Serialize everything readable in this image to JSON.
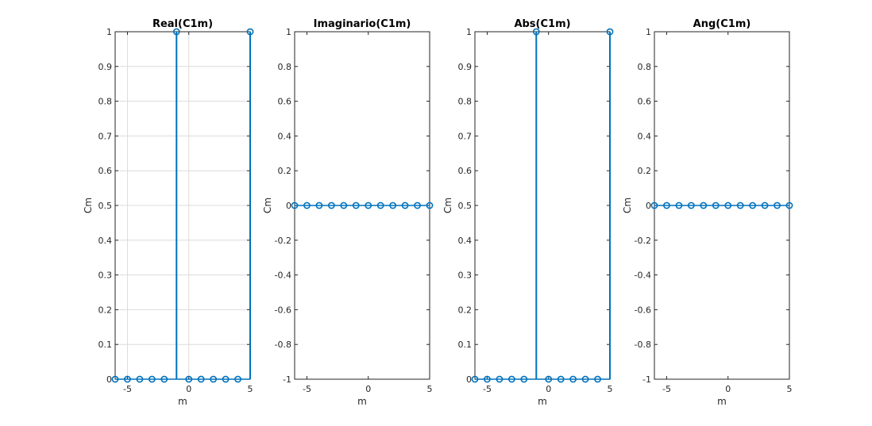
{
  "colors": {
    "stem": "#0072BD",
    "axis": "#262626",
    "grid": "#dcdcdc"
  },
  "chart_data": [
    {
      "type": "stem",
      "title": "Real(C1m)",
      "xlabel": "m",
      "ylabel": "Cm",
      "xlim": [
        -6,
        5
      ],
      "ylim": [
        0,
        1
      ],
      "grid": true,
      "xticks": [
        -5,
        0,
        5
      ],
      "yticks": [
        0,
        0.1,
        0.2,
        0.3,
        0.4,
        0.5,
        0.6,
        0.7,
        0.8,
        0.9,
        1
      ],
      "ytick_labels": [
        "0",
        "0.1",
        "0.2",
        "0.3",
        "0.4",
        "0.5",
        "0.6",
        "0.7",
        "0.8",
        "0.9",
        "1"
      ],
      "x": [
        -6,
        -5,
        -4,
        -3,
        -2,
        -1,
        0,
        1,
        2,
        3,
        4,
        5
      ],
      "y": [
        0,
        0,
        0,
        0,
        0,
        1,
        0,
        0,
        0,
        0,
        0,
        1
      ]
    },
    {
      "type": "stem",
      "title": "Imaginario(C1m)",
      "xlabel": "m",
      "ylabel": "Cm",
      "xlim": [
        -6,
        5
      ],
      "ylim": [
        -1,
        1
      ],
      "grid": false,
      "xticks": [
        -5,
        0,
        5
      ],
      "yticks": [
        -1,
        -0.8,
        -0.6,
        -0.4,
        -0.2,
        0,
        0.2,
        0.4,
        0.6,
        0.8,
        1
      ],
      "ytick_labels": [
        "-1",
        "-0.8",
        "-0.6",
        "-0.4",
        "-0.2",
        "0",
        "0.2",
        "0.4",
        "0.6",
        "0.8",
        "1"
      ],
      "x": [
        -6,
        -5,
        -4,
        -3,
        -2,
        -1,
        0,
        1,
        2,
        3,
        4,
        5
      ],
      "y": [
        0,
        0,
        0,
        0,
        0,
        0,
        0,
        0,
        0,
        0,
        0,
        0
      ]
    },
    {
      "type": "stem",
      "title": "Abs(C1m)",
      "xlabel": "m",
      "ylabel": "Cm",
      "xlim": [
        -6,
        5
      ],
      "ylim": [
        0,
        1
      ],
      "grid": false,
      "xticks": [
        -5,
        0,
        5
      ],
      "yticks": [
        0,
        0.1,
        0.2,
        0.3,
        0.4,
        0.5,
        0.6,
        0.7,
        0.8,
        0.9,
        1
      ],
      "ytick_labels": [
        "0",
        "0.1",
        "0.2",
        "0.3",
        "0.4",
        "0.5",
        "0.6",
        "0.7",
        "0.8",
        "0.9",
        "1"
      ],
      "x": [
        -6,
        -5,
        -4,
        -3,
        -2,
        -1,
        0,
        1,
        2,
        3,
        4,
        5
      ],
      "y": [
        0,
        0,
        0,
        0,
        0,
        1,
        0,
        0,
        0,
        0,
        0,
        1
      ]
    },
    {
      "type": "stem",
      "title": "Ang(C1m)",
      "xlabel": "m",
      "ylabel": "Cm",
      "xlim": [
        -6,
        5
      ],
      "ylim": [
        -1,
        1
      ],
      "grid": false,
      "xticks": [
        -5,
        0,
        5
      ],
      "yticks": [
        -1,
        -0.8,
        -0.6,
        -0.4,
        -0.2,
        0,
        0.2,
        0.4,
        0.6,
        0.8,
        1
      ],
      "ytick_labels": [
        "-1",
        "-0.8",
        "-0.6",
        "-0.4",
        "-0.2",
        "0",
        "0.2",
        "0.4",
        "0.6",
        "0.8",
        "1"
      ],
      "x": [
        -6,
        -5,
        -4,
        -3,
        -2,
        -1,
        0,
        1,
        2,
        3,
        4,
        5
      ],
      "y": [
        0,
        0,
        0,
        0,
        0,
        0,
        0,
        0,
        0,
        0,
        0,
        0
      ]
    }
  ]
}
